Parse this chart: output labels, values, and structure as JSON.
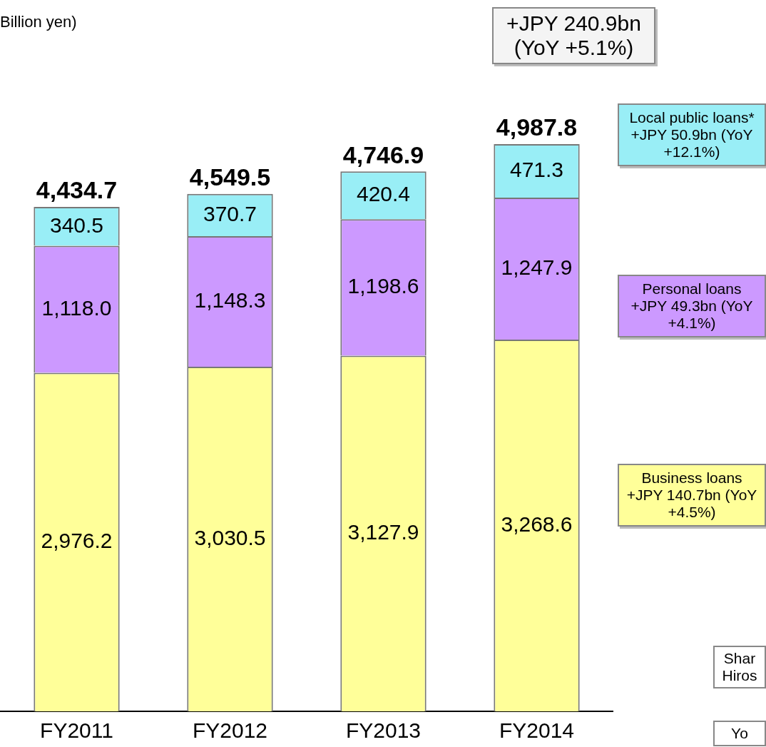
{
  "chart_data": {
    "type": "bar",
    "title": "Billion yen)",
    "categories": [
      "FY2011",
      "FY2012",
      "FY2013",
      "FY2014"
    ],
    "stacked": true,
    "series": [
      {
        "name": "Business loans",
        "color": "#ffff99",
        "values": [
          2976.2,
          3030.5,
          3127.9,
          3268.6
        ],
        "value_labels": [
          "2,976.2",
          "3,030.5",
          "3,127.9",
          "3,268.6"
        ]
      },
      {
        "name": "Personal loans",
        "color": "#cc99ff",
        "values": [
          1118.0,
          1148.3,
          1198.6,
          1247.9
        ],
        "value_labels": [
          "1,118.0",
          "1,148.3",
          "1,198.6",
          "1,247.9"
        ]
      },
      {
        "name": "Local public loans*",
        "color": "#99eef6",
        "values": [
          340.5,
          370.7,
          420.4,
          471.3
        ],
        "value_labels": [
          "340.5",
          "370.7",
          "420.4",
          "471.3"
        ]
      }
    ],
    "totals": [
      "4,434.7",
      "4,549.5",
      "4,746.9",
      "4,987.8"
    ],
    "annotations": [
      "+JPY 240.9bn (YoY +5.1%)",
      "+JPY 140.7bn (YoY +4.5%)",
      "+JPY 49.3bn (YoY +4.1%)",
      "+JPY 50.9bn (YoY +12.1%)",
      "Shar Hiros",
      "Yo"
    ]
  }
}
